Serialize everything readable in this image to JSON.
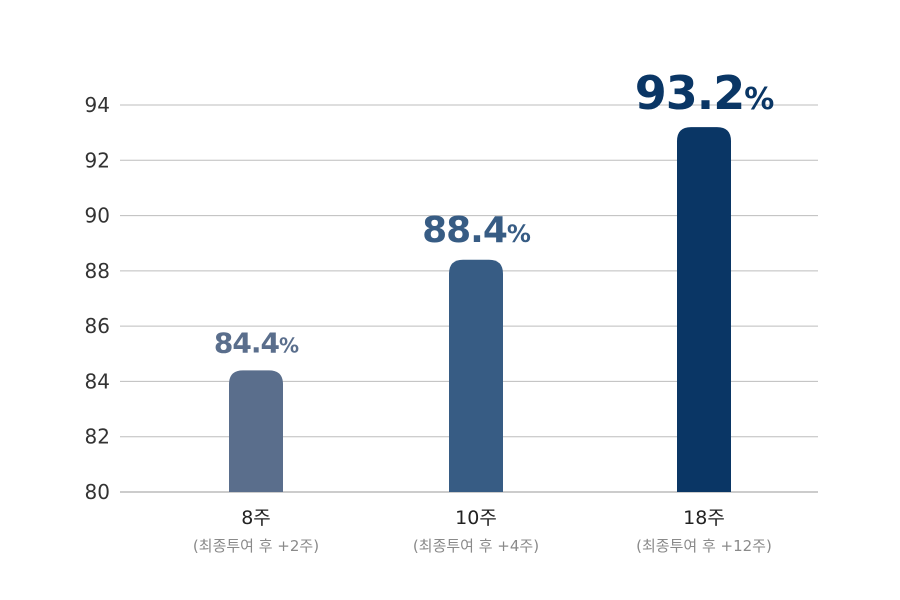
{
  "chart_data": {
    "type": "bar",
    "categories": [
      "8주",
      "10주",
      "18주"
    ],
    "subcategories": [
      "(최종투여 후 +2주)",
      "(최종투여 후 +4주)",
      "(최종투여 후 +12주)"
    ],
    "values": [
      84.4,
      88.4,
      93.2
    ],
    "value_labels": [
      "84.4",
      "88.4",
      "93.2"
    ],
    "value_unit": "%",
    "bar_colors": [
      "#5a6e8c",
      "#375c84",
      "#0a3665"
    ],
    "ylim": [
      80,
      94
    ],
    "yticks": [
      80,
      82,
      84,
      86,
      88,
      90,
      92,
      94
    ],
    "grid": true,
    "title": "",
    "xlabel": "",
    "ylabel": ""
  }
}
